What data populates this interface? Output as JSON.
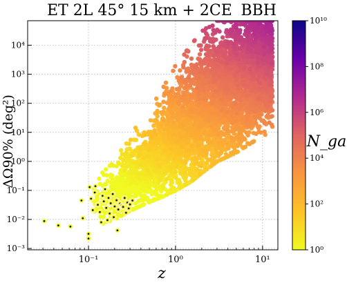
{
  "chart_data": {
    "type": "scatter",
    "title": "ET 2L 45° 15 km + 2CE",
    "title_right": "BBH",
    "xlabel": "z",
    "ylabel": "ΔΩ90% (deg²)",
    "x_scale": "log",
    "y_scale": "log",
    "xlim": [
      0.02,
      15
    ],
    "ylim": [
      0.0009,
      70000
    ],
    "x_ticks": [
      0.1,
      1,
      10
    ],
    "x_tick_labels": [
      "10⁻¹",
      "10⁰",
      "10¹"
    ],
    "y_ticks": [
      0.001,
      0.01,
      0.1,
      1,
      10,
      100,
      1000,
      10000
    ],
    "y_tick_labels": [
      "10⁻³",
      "10⁻²",
      "10⁻¹",
      "10⁰",
      "10¹",
      "10²",
      "10³",
      "10⁴"
    ],
    "grid": true,
    "colorbar": {
      "label": "N_gal",
      "scale": "log",
      "range": [
        1,
        10000000000
      ],
      "ticks": [
        1,
        100,
        10000,
        1000000,
        100000000,
        10000000000
      ],
      "tick_labels": [
        "10⁰",
        "10²",
        "10⁴",
        "10⁶",
        "10⁸",
        "10¹⁰"
      ],
      "colormap": [
        "#f0f921",
        "#fdc328",
        "#f89540",
        "#e16462",
        "#b12a90",
        "#6a00a8",
        "#0d0887"
      ]
    },
    "highlighted_points": [
      {
        "z": 0.031,
        "area": 0.0088,
        "n_gal": 1
      },
      {
        "z": 0.045,
        "area": 0.0062,
        "n_gal": 1
      },
      {
        "z": 0.062,
        "area": 0.0057,
        "n_gal": 1
      },
      {
        "z": 0.083,
        "area": 0.045,
        "n_gal": 1
      },
      {
        "z": 0.086,
        "area": 0.011,
        "n_gal": 1
      },
      {
        "z": 0.1,
        "area": 0.0022,
        "n_gal": 1
      },
      {
        "z": 0.1,
        "area": 0.0032,
        "n_gal": 1
      },
      {
        "z": 0.103,
        "area": 0.13,
        "n_gal": 1
      },
      {
        "z": 0.107,
        "area": 0.052,
        "n_gal": 1
      },
      {
        "z": 0.112,
        "area": 0.021,
        "n_gal": 1
      },
      {
        "z": 0.118,
        "area": 0.085,
        "n_gal": 1
      },
      {
        "z": 0.12,
        "area": 0.14,
        "n_gal": 1
      },
      {
        "z": 0.128,
        "area": 0.032,
        "n_gal": 1
      },
      {
        "z": 0.135,
        "area": 0.018,
        "n_gal": 1
      },
      {
        "z": 0.14,
        "area": 0.008,
        "n_gal": 1
      },
      {
        "z": 0.145,
        "area": 0.065,
        "n_gal": 1
      },
      {
        "z": 0.15,
        "area": 0.042,
        "n_gal": 2
      },
      {
        "z": 0.155,
        "area": 0.11,
        "n_gal": 1
      },
      {
        "z": 0.16,
        "area": 0.025,
        "n_gal": 2
      },
      {
        "z": 0.165,
        "area": 0.0095,
        "n_gal": 1
      },
      {
        "z": 0.17,
        "area": 0.055,
        "n_gal": 2
      },
      {
        "z": 0.175,
        "area": 0.016,
        "n_gal": 2
      },
      {
        "z": 0.18,
        "area": 0.036,
        "n_gal": 2
      },
      {
        "z": 0.19,
        "area": 0.075,
        "n_gal": 2
      },
      {
        "z": 0.195,
        "area": 0.012,
        "n_gal": 2
      },
      {
        "z": 0.2,
        "area": 0.028,
        "n_gal": 2
      },
      {
        "z": 0.21,
        "area": 0.046,
        "n_gal": 3
      },
      {
        "z": 0.215,
        "area": 0.0042,
        "n_gal": 1
      },
      {
        "z": 0.22,
        "area": 0.022,
        "n_gal": 3
      },
      {
        "z": 0.23,
        "area": 0.035,
        "n_gal": 3
      },
      {
        "z": 0.24,
        "area": 0.03,
        "n_gal": 3
      },
      {
        "z": 0.25,
        "area": 0.027,
        "n_gal": 3
      },
      {
        "z": 0.26,
        "area": 0.055,
        "n_gal": 3
      },
      {
        "z": 0.27,
        "area": 0.017,
        "n_gal": 3
      },
      {
        "z": 0.28,
        "area": 0.038,
        "n_gal": 4
      },
      {
        "z": 0.29,
        "area": 0.024,
        "n_gal": 4
      },
      {
        "z": 0.3,
        "area": 0.033,
        "n_gal": 4
      },
      {
        "z": 0.32,
        "area": 0.045,
        "n_gal": 4
      }
    ],
    "population_ridge": [
      {
        "z": 0.1,
        "area_median": 0.03,
        "area_low": 0.005,
        "area_high": 0.15
      },
      {
        "z": 0.2,
        "area_median": 0.08,
        "area_low": 0.01,
        "area_high": 1
      },
      {
        "z": 0.3,
        "area_median": 0.25,
        "area_low": 0.02,
        "area_high": 8
      },
      {
        "z": 0.5,
        "area_median": 0.8,
        "area_low": 0.04,
        "area_high": 60
      },
      {
        "z": 0.7,
        "area_median": 2,
        "area_low": 0.06,
        "area_high": 300
      },
      {
        "z": 1,
        "area_median": 6,
        "area_low": 0.1,
        "area_high": 2000
      },
      {
        "z": 1.5,
        "area_median": 20,
        "area_low": 0.2,
        "area_high": 10000
      },
      {
        "z": 2,
        "area_median": 50,
        "area_low": 0.4,
        "area_high": 30000
      },
      {
        "z": 3,
        "area_median": 150,
        "area_low": 1,
        "area_high": 70000
      },
      {
        "z": 5,
        "area_median": 500,
        "area_low": 2,
        "area_high": 70000
      },
      {
        "z": 8,
        "area_median": 1500,
        "area_low": 5,
        "area_high": 70000
      },
      {
        "z": 12,
        "area_median": 3000,
        "area_low": 10,
        "area_high": 70000
      }
    ]
  }
}
